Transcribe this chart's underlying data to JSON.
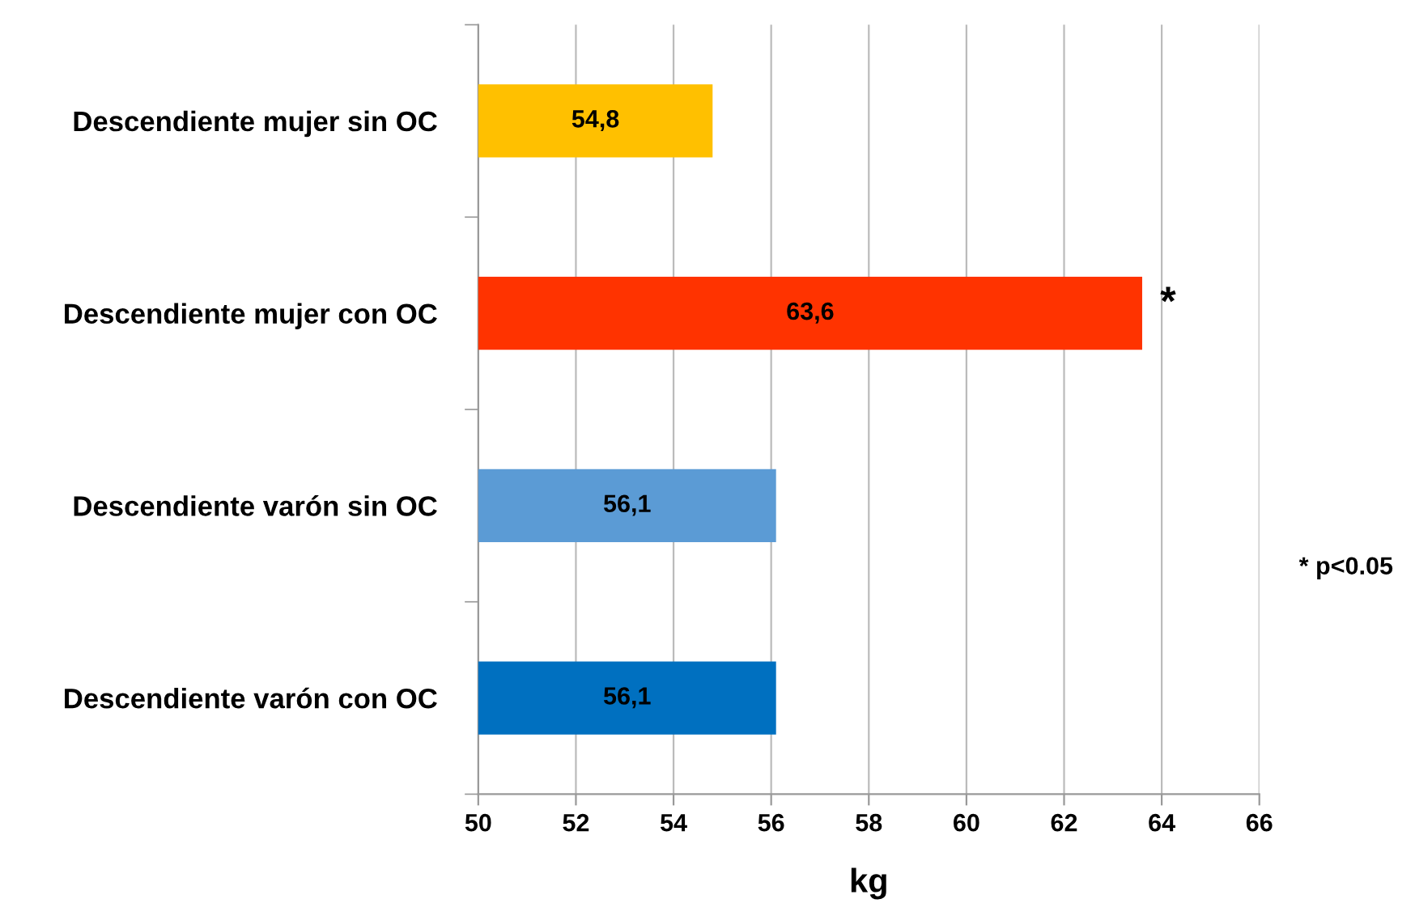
{
  "chart_data": {
    "type": "bar",
    "orientation": "horizontal",
    "xlabel": "kg",
    "categories": [
      "Descendiente mujer sin OC",
      "Descendiente mujer con OC",
      "Descendiente varón sin OC",
      "Descendiente varón con OC"
    ],
    "values": [
      54.8,
      63.6,
      56.1,
      56.1
    ],
    "colors": [
      "#ffc000",
      "#ff3300",
      "#5b9bd5",
      "#0070c0"
    ],
    "value_labels": [
      "54,8",
      "63,6",
      "56,1",
      "56,1"
    ],
    "xlim": [
      50,
      66
    ],
    "xticks": [
      50,
      52,
      54,
      56,
      58,
      60,
      62,
      64,
      66
    ],
    "grid": "x",
    "annotations": [
      {
        "text": "*",
        "x": 63.6,
        "y": "Descendiente mujer con OC"
      },
      "* p<0.05"
    ]
  }
}
